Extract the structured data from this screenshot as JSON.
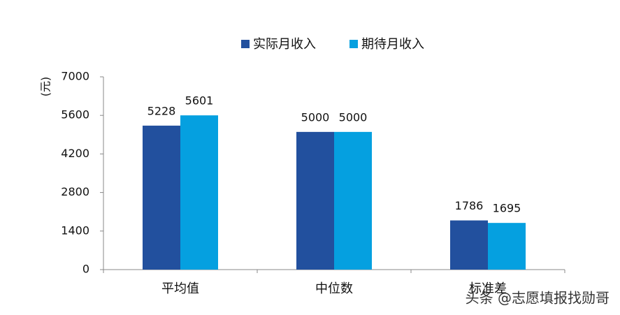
{
  "chart_data": {
    "type": "bar",
    "y_label": "(元)",
    "categories": [
      "平均值",
      "中位数",
      "标准差"
    ],
    "series": [
      {
        "name": "实际月收入",
        "color": "#22509e",
        "values": [
          5228,
          5000,
          1786
        ]
      },
      {
        "name": "期待月收入",
        "color": "#05a0e0",
        "values": [
          5601,
          5000,
          1695
        ]
      }
    ],
    "ylim": [
      0,
      7000
    ],
    "yticks": [
      0,
      1400,
      2800,
      4200,
      5600,
      7000
    ],
    "legend": "top",
    "watermark": "头条 @志愿填报找勋哥"
  }
}
